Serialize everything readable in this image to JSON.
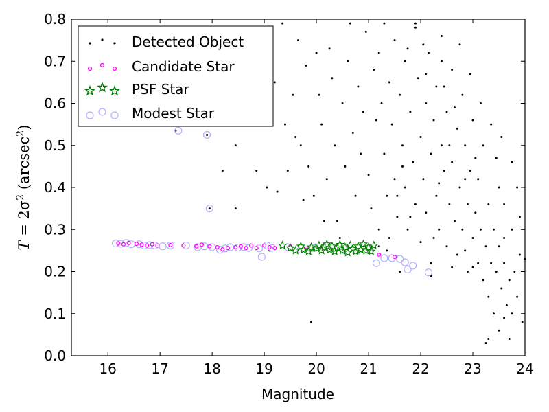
{
  "chart_data": {
    "type": "scatter",
    "xlabel": "Magnitude",
    "ylabel": {
      "symbol": "T",
      "equals": " = 2σ",
      "exp1": "2",
      "unit": " (arcsec",
      "exp2": "2",
      "close": ")"
    },
    "xlim": [
      15.3,
      24
    ],
    "ylim": [
      0.0,
      0.8
    ],
    "xticks": [
      "16",
      "17",
      "18",
      "19",
      "20",
      "21",
      "22",
      "23",
      "24"
    ],
    "yticks": [
      "0.0",
      "0.1",
      "0.2",
      "0.3",
      "0.4",
      "0.5",
      "0.6",
      "0.7",
      "0.8"
    ],
    "grid": false,
    "legend_position": "top-left",
    "colors": {
      "detected": "#000000",
      "candidate": "#ff00ff",
      "psf": "#008000",
      "modest": "#b0b0ff"
    },
    "series": [
      {
        "name": "Detected Object",
        "marker": "dot",
        "points": [
          [
            17.3,
            0.535
          ],
          [
            17.9,
            0.525
          ],
          [
            17.95,
            0.35
          ],
          [
            18.2,
            0.44
          ],
          [
            18.45,
            0.5
          ],
          [
            18.45,
            0.35
          ],
          [
            18.85,
            0.44
          ],
          [
            19.05,
            0.4
          ],
          [
            19.25,
            0.39
          ],
          [
            19.1,
            0.25
          ],
          [
            19.9,
            0.08
          ],
          [
            19.0,
            0.76
          ],
          [
            19.2,
            0.65
          ],
          [
            19.35,
            0.79
          ],
          [
            19.4,
            0.55
          ],
          [
            19.6,
            0.52
          ],
          [
            19.65,
            0.75
          ],
          [
            19.7,
            0.5
          ],
          [
            19.75,
            0.37
          ],
          [
            19.85,
            0.45
          ],
          [
            20.0,
            0.72
          ],
          [
            20.05,
            0.62
          ],
          [
            20.1,
            0.55
          ],
          [
            20.2,
            0.42
          ],
          [
            20.3,
            0.66
          ],
          [
            20.35,
            0.5
          ],
          [
            20.4,
            0.32
          ],
          [
            20.5,
            0.6
          ],
          [
            20.55,
            0.45
          ],
          [
            20.6,
            0.7
          ],
          [
            20.7,
            0.53
          ],
          [
            20.75,
            0.38
          ],
          [
            20.8,
            0.64
          ],
          [
            20.85,
            0.48
          ],
          [
            20.9,
            0.58
          ],
          [
            20.95,
            0.77
          ],
          [
            21.0,
            0.43
          ],
          [
            21.05,
            0.35
          ],
          [
            21.1,
            0.68
          ],
          [
            21.15,
            0.56
          ],
          [
            21.2,
            0.3
          ],
          [
            21.2,
            0.72
          ],
          [
            21.25,
            0.6
          ],
          [
            21.3,
            0.48
          ],
          [
            21.35,
            0.38
          ],
          [
            21.4,
            0.65
          ],
          [
            21.4,
            0.28
          ],
          [
            21.45,
            0.55
          ],
          [
            21.5,
            0.75
          ],
          [
            21.5,
            0.42
          ],
          [
            21.55,
            0.33
          ],
          [
            21.6,
            0.62
          ],
          [
            21.65,
            0.5
          ],
          [
            21.7,
            0.4
          ],
          [
            21.7,
            0.7
          ],
          [
            21.75,
            0.3
          ],
          [
            21.8,
            0.58
          ],
          [
            21.85,
            0.46
          ],
          [
            21.9,
            0.36
          ],
          [
            21.9,
            0.78
          ],
          [
            21.95,
            0.66
          ],
          [
            22.0,
            0.52
          ],
          [
            22.0,
            0.27
          ],
          [
            22.05,
            0.42
          ],
          [
            22.1,
            0.6
          ],
          [
            22.1,
            0.34
          ],
          [
            22.15,
            0.72
          ],
          [
            22.2,
            0.48
          ],
          [
            22.2,
            0.22
          ],
          [
            22.25,
            0.56
          ],
          [
            22.3,
            0.38
          ],
          [
            22.3,
            0.64
          ],
          [
            22.35,
            0.3
          ],
          [
            22.4,
            0.5
          ],
          [
            22.4,
            0.76
          ],
          [
            22.45,
            0.44
          ],
          [
            22.5,
            0.26
          ],
          [
            22.5,
            0.58
          ],
          [
            22.55,
            0.36
          ],
          [
            22.6,
            0.68
          ],
          [
            22.6,
            0.46
          ],
          [
            22.65,
            0.32
          ],
          [
            22.7,
            0.54
          ],
          [
            22.7,
            0.24
          ],
          [
            22.75,
            0.4
          ],
          [
            22.8,
            0.62
          ],
          [
            22.8,
            0.3
          ],
          [
            22.85,
            0.5
          ],
          [
            22.9,
            0.36
          ],
          [
            22.9,
            0.2
          ],
          [
            22.95,
            0.44
          ],
          [
            23.0,
            0.28
          ],
          [
            23.0,
            0.56
          ],
          [
            23.05,
            0.34
          ],
          [
            23.1,
            0.22
          ],
          [
            23.1,
            0.42
          ],
          [
            23.15,
            0.3
          ],
          [
            23.2,
            0.18
          ],
          [
            23.2,
            0.5
          ],
          [
            23.25,
            0.26
          ],
          [
            23.3,
            0.36
          ],
          [
            23.3,
            0.14
          ],
          [
            23.35,
            0.22
          ],
          [
            23.4,
            0.3
          ],
          [
            23.4,
            0.1
          ],
          [
            23.45,
            0.2
          ],
          [
            23.5,
            0.26
          ],
          [
            23.5,
            0.06
          ],
          [
            23.55,
            0.16
          ],
          [
            23.6,
            0.22
          ],
          [
            23.65,
            0.12
          ],
          [
            23.7,
            0.18
          ],
          [
            23.7,
            0.04
          ],
          [
            23.75,
            0.1
          ],
          [
            23.8,
            0.2
          ],
          [
            23.85,
            0.14
          ],
          [
            23.9,
            0.24
          ],
          [
            23.95,
            0.08
          ],
          [
            23.3,
            0.04
          ],
          [
            23.25,
            0.03
          ],
          [
            23.6,
            0.09
          ],
          [
            22.2,
            0.19
          ],
          [
            21.6,
            0.2
          ],
          [
            21.9,
            0.79
          ],
          [
            22.05,
            0.74
          ],
          [
            21.75,
            0.73
          ],
          [
            22.4,
            0.7
          ],
          [
            22.75,
            0.74
          ],
          [
            22.95,
            0.67
          ],
          [
            23.15,
            0.6
          ],
          [
            23.35,
            0.55
          ],
          [
            23.55,
            0.52
          ],
          [
            23.75,
            0.46
          ],
          [
            23.45,
            0.47
          ],
          [
            23.6,
            0.36
          ],
          [
            23.85,
            0.4
          ],
          [
            21.3,
            0.79
          ],
          [
            20.65,
            0.79
          ],
          [
            20.25,
            0.73
          ],
          [
            19.8,
            0.69
          ],
          [
            19.55,
            0.62
          ],
          [
            19.45,
            0.44
          ],
          [
            19.95,
            0.38
          ],
          [
            20.15,
            0.32
          ],
          [
            20.45,
            0.28
          ],
          [
            20.65,
            0.26
          ],
          [
            21.2,
            0.26
          ],
          [
            21.35,
            0.25
          ],
          [
            22.6,
            0.21
          ],
          [
            23.0,
            0.21
          ],
          [
            22.85,
            0.25
          ],
          [
            23.6,
            0.28
          ],
          [
            23.75,
            0.3
          ],
          [
            24.0,
            0.23
          ],
          [
            23.9,
            0.33
          ],
          [
            23.5,
            0.4
          ],
          [
            22.1,
            0.67
          ],
          [
            21.65,
            0.45
          ],
          [
            22.35,
            0.41
          ],
          [
            22.55,
            0.5
          ],
          [
            22.25,
            0.28
          ],
          [
            21.8,
            0.33
          ],
          [
            21.55,
            0.38
          ],
          [
            22.65,
            0.59
          ],
          [
            22.45,
            0.64
          ],
          [
            22.85,
            0.42
          ],
          [
            23.05,
            0.47
          ]
        ]
      },
      {
        "name": "Candidate Star",
        "marker": "circle-small",
        "points": [
          [
            16.2,
            0.267
          ],
          [
            16.3,
            0.265
          ],
          [
            16.4,
            0.268
          ],
          [
            16.55,
            0.266
          ],
          [
            16.65,
            0.264
          ],
          [
            16.75,
            0.262
          ],
          [
            16.85,
            0.265
          ],
          [
            16.95,
            0.262
          ],
          [
            17.2,
            0.263
          ],
          [
            17.45,
            0.262
          ],
          [
            17.7,
            0.26
          ],
          [
            17.8,
            0.264
          ],
          [
            17.95,
            0.26
          ],
          [
            18.1,
            0.258
          ],
          [
            18.2,
            0.253
          ],
          [
            18.3,
            0.256
          ],
          [
            18.45,
            0.258
          ],
          [
            18.55,
            0.26
          ],
          [
            18.65,
            0.256
          ],
          [
            18.75,
            0.262
          ],
          [
            18.85,
            0.256
          ],
          [
            19.0,
            0.262
          ],
          [
            19.1,
            0.258
          ],
          [
            19.2,
            0.256
          ],
          [
            19.5,
            0.26
          ],
          [
            19.8,
            0.255
          ],
          [
            20.1,
            0.257
          ],
          [
            20.4,
            0.26
          ],
          [
            20.7,
            0.255
          ],
          [
            21.0,
            0.26
          ],
          [
            21.2,
            0.24
          ],
          [
            21.5,
            0.235
          ]
        ]
      },
      {
        "name": "PSF Star",
        "marker": "star",
        "points": [
          [
            19.35,
            0.262
          ],
          [
            19.5,
            0.256
          ],
          [
            19.6,
            0.25
          ],
          [
            19.7,
            0.26
          ],
          [
            19.75,
            0.252
          ],
          [
            19.85,
            0.248
          ],
          [
            19.9,
            0.258
          ],
          [
            20.0,
            0.255
          ],
          [
            20.05,
            0.262
          ],
          [
            20.1,
            0.25
          ],
          [
            20.15,
            0.258
          ],
          [
            20.2,
            0.265
          ],
          [
            20.25,
            0.252
          ],
          [
            20.3,
            0.26
          ],
          [
            20.35,
            0.248
          ],
          [
            20.4,
            0.256
          ],
          [
            20.45,
            0.264
          ],
          [
            20.5,
            0.25
          ],
          [
            20.55,
            0.258
          ],
          [
            20.6,
            0.245
          ],
          [
            20.65,
            0.262
          ],
          [
            20.7,
            0.254
          ],
          [
            20.75,
            0.248
          ],
          [
            20.8,
            0.26
          ],
          [
            20.85,
            0.252
          ],
          [
            20.9,
            0.265
          ],
          [
            20.95,
            0.25
          ],
          [
            21.0,
            0.258
          ],
          [
            21.05,
            0.248
          ],
          [
            21.1,
            0.262
          ]
        ]
      },
      {
        "name": "Modest Star",
        "marker": "circle-large",
        "points": [
          [
            16.15,
            0.267
          ],
          [
            16.25,
            0.266
          ],
          [
            16.35,
            0.268
          ],
          [
            16.45,
            0.265
          ],
          [
            16.6,
            0.265
          ],
          [
            16.7,
            0.262
          ],
          [
            16.8,
            0.263
          ],
          [
            16.9,
            0.262
          ],
          [
            17.05,
            0.26
          ],
          [
            17.2,
            0.262
          ],
          [
            17.5,
            0.262
          ],
          [
            17.72,
            0.258
          ],
          [
            17.85,
            0.26
          ],
          [
            18.0,
            0.258
          ],
          [
            18.15,
            0.252
          ],
          [
            18.25,
            0.255
          ],
          [
            18.35,
            0.258
          ],
          [
            18.5,
            0.257
          ],
          [
            18.6,
            0.258
          ],
          [
            18.7,
            0.256
          ],
          [
            18.9,
            0.255
          ],
          [
            19.05,
            0.262
          ],
          [
            19.15,
            0.256
          ],
          [
            18.95,
            0.235
          ],
          [
            19.45,
            0.258
          ],
          [
            19.7,
            0.252
          ],
          [
            19.95,
            0.256
          ],
          [
            20.25,
            0.255
          ],
          [
            20.55,
            0.25
          ],
          [
            20.8,
            0.25
          ],
          [
            21.0,
            0.252
          ],
          [
            21.15,
            0.22
          ],
          [
            21.3,
            0.232
          ],
          [
            21.45,
            0.232
          ],
          [
            21.6,
            0.23
          ],
          [
            21.7,
            0.222
          ],
          [
            21.75,
            0.205
          ],
          [
            21.85,
            0.214
          ],
          [
            22.15,
            0.198
          ],
          [
            17.35,
            0.535
          ],
          [
            17.9,
            0.525
          ],
          [
            17.95,
            0.35
          ]
        ]
      }
    ]
  }
}
